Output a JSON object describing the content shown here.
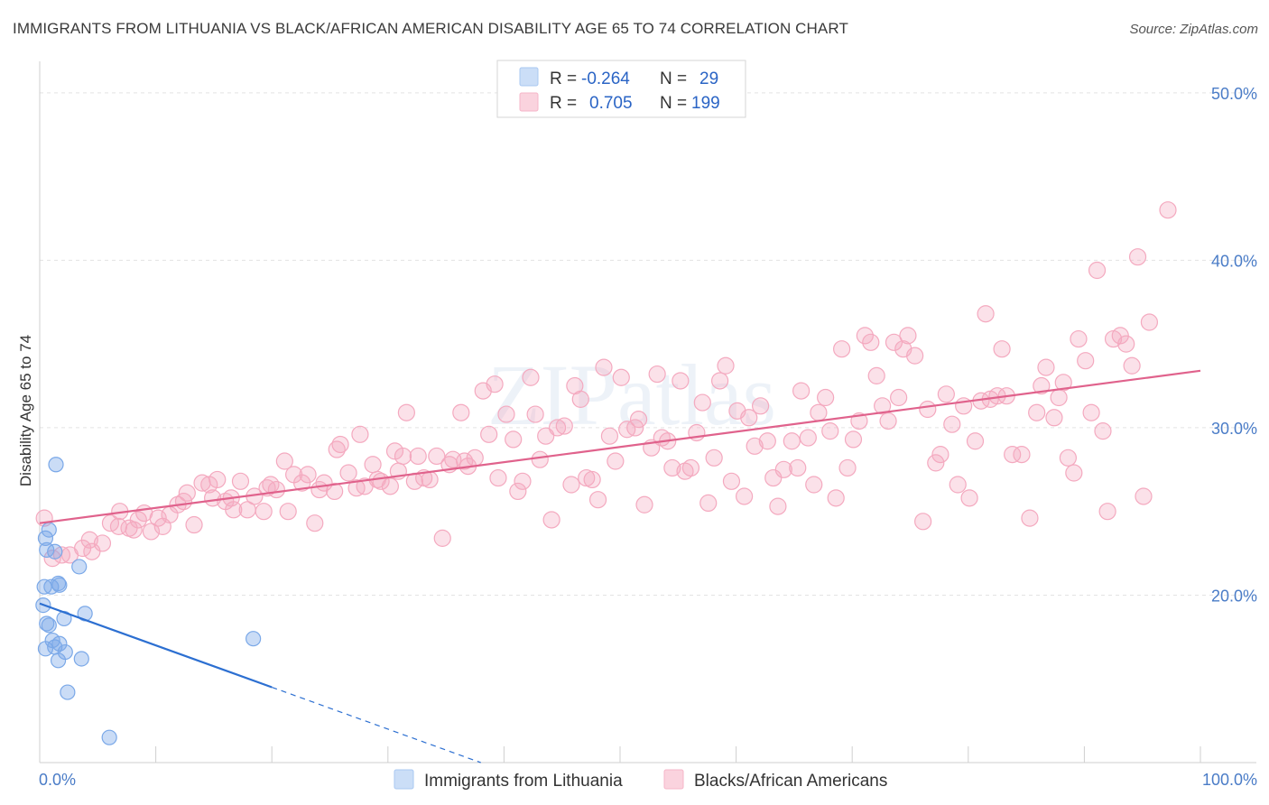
{
  "title": "IMMIGRANTS FROM LITHUANIA VS BLACK/AFRICAN AMERICAN DISABILITY AGE 65 TO 74 CORRELATION CHART",
  "source": "Source: ZipAtlas.com",
  "watermark": "ZIPatlas",
  "chart_data": {
    "type": "scatter",
    "ylabel": "Disability Age 65 to 74",
    "xlim": [
      0,
      100
    ],
    "ylim": [
      10,
      51.5
    ],
    "x_tick_labels": [
      {
        "value": 0,
        "label": "0.0%"
      },
      {
        "value": 100,
        "label": "100.0%"
      }
    ],
    "y_tick_labels": [
      {
        "value": 20,
        "label": "20.0%"
      },
      {
        "value": 30,
        "label": "30.0%"
      },
      {
        "value": 40,
        "label": "40.0%"
      },
      {
        "value": 50,
        "label": "50.0%"
      }
    ],
    "grid": "horizontal dashed",
    "legend_top": [
      {
        "r_label": "R =",
        "r_value": "-0.264",
        "n_label": "N =",
        "n_value": "29",
        "color": "#a9c8f2"
      },
      {
        "r_label": "R =",
        "r_value": "0.705",
        "n_label": "N =",
        "n_value": "199",
        "color": "#f6b5c8"
      }
    ],
    "series": [
      {
        "name": "Immigrants from Lithuania",
        "color": "#7aa8e8",
        "line_color": "#2c6fd1",
        "trend": {
          "x0": 0,
          "y0": 19.5,
          "x1": 20,
          "y1": 14.5,
          "dash_to_x": 38,
          "dash_to_y": 10
        },
        "points": [
          [
            1.4,
            27.8
          ],
          [
            0.8,
            23.9
          ],
          [
            0.5,
            23.4
          ],
          [
            1.3,
            22.6
          ],
          [
            0.6,
            22.7
          ],
          [
            3.4,
            21.7
          ],
          [
            1.6,
            20.7
          ],
          [
            1.7,
            20.6
          ],
          [
            0.4,
            20.5
          ],
          [
            1.0,
            20.5
          ],
          [
            3.9,
            18.9
          ],
          [
            2.1,
            18.6
          ],
          [
            0.8,
            18.2
          ],
          [
            0.6,
            18.3
          ],
          [
            1.1,
            17.3
          ],
          [
            1.7,
            17.1
          ],
          [
            0.5,
            16.8
          ],
          [
            1.3,
            16.9
          ],
          [
            2.2,
            16.6
          ],
          [
            1.6,
            16.1
          ],
          [
            3.6,
            16.2
          ],
          [
            2.4,
            14.2
          ],
          [
            18.4,
            17.4
          ],
          [
            6.0,
            11.5
          ],
          [
            0.3,
            19.4
          ]
        ]
      },
      {
        "name": "Blacks/African Americans",
        "color": "#f4a9bf",
        "line_color": "#e0628c",
        "trend": {
          "x0": 0,
          "y0": 24.3,
          "x1": 100,
          "y1": 33.4
        },
        "points": [
          [
            0.4,
            24.6
          ],
          [
            1.1,
            22.2
          ],
          [
            1.9,
            22.4
          ],
          [
            2.6,
            22.4
          ],
          [
            3.7,
            22.8
          ],
          [
            4.3,
            23.3
          ],
          [
            4.5,
            22.6
          ],
          [
            5.4,
            23.1
          ],
          [
            6.1,
            24.3
          ],
          [
            6.8,
            24.1
          ],
          [
            6.9,
            25.0
          ],
          [
            7.7,
            24.0
          ],
          [
            8.1,
            23.9
          ],
          [
            8.5,
            24.5
          ],
          [
            9.0,
            24.9
          ],
          [
            9.6,
            23.8
          ],
          [
            10.2,
            24.6
          ],
          [
            10.6,
            24.1
          ],
          [
            11.2,
            24.8
          ],
          [
            11.9,
            25.4
          ],
          [
            12.4,
            25.6
          ],
          [
            12.7,
            26.1
          ],
          [
            13.3,
            24.2
          ],
          [
            14.0,
            26.7
          ],
          [
            14.6,
            26.6
          ],
          [
            14.9,
            25.8
          ],
          [
            15.3,
            26.9
          ],
          [
            16.0,
            25.6
          ],
          [
            16.5,
            25.8
          ],
          [
            16.7,
            25.1
          ],
          [
            17.3,
            26.8
          ],
          [
            17.9,
            25.1
          ],
          [
            18.5,
            25.9
          ],
          [
            19.3,
            25.0
          ],
          [
            19.6,
            26.4
          ],
          [
            19.9,
            26.6
          ],
          [
            20.4,
            26.3
          ],
          [
            21.1,
            28.0
          ],
          [
            21.4,
            25.0
          ],
          [
            21.9,
            27.2
          ],
          [
            22.6,
            26.7
          ],
          [
            23.1,
            27.2
          ],
          [
            23.7,
            24.3
          ],
          [
            24.1,
            26.3
          ],
          [
            24.5,
            26.7
          ],
          [
            25.4,
            26.2
          ],
          [
            25.6,
            28.7
          ],
          [
            25.9,
            29.0
          ],
          [
            26.6,
            27.3
          ],
          [
            27.3,
            26.4
          ],
          [
            27.6,
            29.6
          ],
          [
            28.0,
            26.5
          ],
          [
            28.7,
            27.8
          ],
          [
            29.1,
            26.9
          ],
          [
            29.4,
            26.8
          ],
          [
            30.2,
            26.5
          ],
          [
            30.6,
            28.6
          ],
          [
            30.9,
            27.4
          ],
          [
            31.3,
            28.3
          ],
          [
            31.6,
            30.9
          ],
          [
            32.3,
            26.8
          ],
          [
            32.6,
            28.3
          ],
          [
            33.1,
            27.0
          ],
          [
            33.6,
            26.9
          ],
          [
            34.2,
            28.3
          ],
          [
            34.7,
            23.4
          ],
          [
            35.3,
            27.8
          ],
          [
            35.6,
            28.1
          ],
          [
            36.3,
            30.9
          ],
          [
            36.6,
            28.0
          ],
          [
            36.9,
            27.7
          ],
          [
            37.5,
            28.2
          ],
          [
            38.2,
            32.2
          ],
          [
            38.7,
            29.6
          ],
          [
            39.2,
            32.6
          ],
          [
            39.5,
            27.0
          ],
          [
            40.2,
            30.8
          ],
          [
            40.8,
            29.3
          ],
          [
            41.2,
            26.2
          ],
          [
            41.6,
            26.8
          ],
          [
            42.3,
            33.0
          ],
          [
            42.7,
            30.8
          ],
          [
            43.1,
            28.1
          ],
          [
            43.6,
            29.5
          ],
          [
            44.1,
            24.5
          ],
          [
            44.6,
            30.0
          ],
          [
            45.2,
            30.1
          ],
          [
            45.8,
            26.6
          ],
          [
            46.1,
            32.5
          ],
          [
            46.6,
            31.7
          ],
          [
            47.1,
            27.0
          ],
          [
            47.6,
            26.9
          ],
          [
            48.1,
            25.7
          ],
          [
            48.6,
            33.6
          ],
          [
            49.1,
            29.5
          ],
          [
            49.6,
            28.0
          ],
          [
            50.1,
            33.0
          ],
          [
            50.6,
            29.9
          ],
          [
            51.3,
            30.0
          ],
          [
            51.6,
            30.5
          ],
          [
            52.1,
            25.4
          ],
          [
            52.7,
            28.8
          ],
          [
            53.2,
            33.2
          ],
          [
            53.6,
            29.4
          ],
          [
            54.1,
            29.2
          ],
          [
            54.5,
            27.6
          ],
          [
            55.2,
            32.8
          ],
          [
            55.6,
            27.4
          ],
          [
            56.1,
            27.6
          ],
          [
            56.6,
            29.7
          ],
          [
            57.1,
            31.5
          ],
          [
            57.6,
            25.5
          ],
          [
            58.1,
            28.2
          ],
          [
            58.6,
            32.8
          ],
          [
            59.1,
            33.7
          ],
          [
            59.6,
            26.8
          ],
          [
            60.1,
            31.0
          ],
          [
            60.7,
            25.9
          ],
          [
            61.1,
            30.6
          ],
          [
            61.6,
            28.9
          ],
          [
            62.1,
            31.3
          ],
          [
            62.7,
            29.2
          ],
          [
            63.2,
            27.0
          ],
          [
            63.6,
            25.3
          ],
          [
            64.1,
            27.5
          ],
          [
            64.8,
            29.2
          ],
          [
            65.3,
            27.6
          ],
          [
            65.6,
            32.2
          ],
          [
            66.2,
            29.4
          ],
          [
            66.7,
            26.6
          ],
          [
            67.1,
            30.9
          ],
          [
            67.7,
            31.8
          ],
          [
            68.1,
            29.8
          ],
          [
            68.6,
            25.8
          ],
          [
            69.1,
            34.7
          ],
          [
            69.6,
            27.6
          ],
          [
            70.1,
            29.3
          ],
          [
            70.6,
            30.4
          ],
          [
            71.1,
            35.5
          ],
          [
            71.6,
            35.1
          ],
          [
            72.1,
            33.1
          ],
          [
            72.6,
            31.3
          ],
          [
            73.1,
            30.4
          ],
          [
            73.6,
            35.1
          ],
          [
            74.0,
            31.8
          ],
          [
            74.4,
            34.7
          ],
          [
            74.8,
            35.5
          ],
          [
            75.4,
            34.3
          ],
          [
            76.1,
            24.4
          ],
          [
            76.5,
            31.1
          ],
          [
            77.2,
            27.9
          ],
          [
            77.6,
            28.4
          ],
          [
            78.1,
            32.0
          ],
          [
            78.6,
            30.2
          ],
          [
            79.1,
            26.6
          ],
          [
            79.6,
            31.3
          ],
          [
            80.1,
            25.8
          ],
          [
            80.6,
            29.2
          ],
          [
            81.1,
            31.6
          ],
          [
            81.5,
            36.8
          ],
          [
            81.9,
            31.7
          ],
          [
            82.5,
            31.9
          ],
          [
            82.9,
            34.7
          ],
          [
            83.3,
            31.9
          ],
          [
            83.8,
            28.4
          ],
          [
            84.6,
            28.4
          ],
          [
            85.3,
            24.6
          ],
          [
            85.9,
            30.9
          ],
          [
            86.3,
            32.5
          ],
          [
            86.7,
            33.6
          ],
          [
            87.4,
            30.6
          ],
          [
            87.8,
            31.8
          ],
          [
            88.2,
            32.7
          ],
          [
            88.6,
            28.2
          ],
          [
            89.1,
            27.3
          ],
          [
            89.5,
            35.3
          ],
          [
            90.1,
            34.0
          ],
          [
            90.6,
            30.9
          ],
          [
            91.1,
            39.4
          ],
          [
            91.6,
            29.8
          ],
          [
            92.0,
            25.0
          ],
          [
            92.5,
            35.3
          ],
          [
            93.1,
            35.5
          ],
          [
            93.6,
            35.0
          ],
          [
            94.1,
            33.7
          ],
          [
            94.6,
            40.2
          ],
          [
            95.1,
            25.9
          ],
          [
            95.6,
            36.3
          ],
          [
            97.2,
            43.0
          ]
        ]
      }
    ]
  },
  "bottom_legend": [
    {
      "label": "Immigrants from Lithuania"
    },
    {
      "label": "Blacks/African Americans"
    }
  ]
}
